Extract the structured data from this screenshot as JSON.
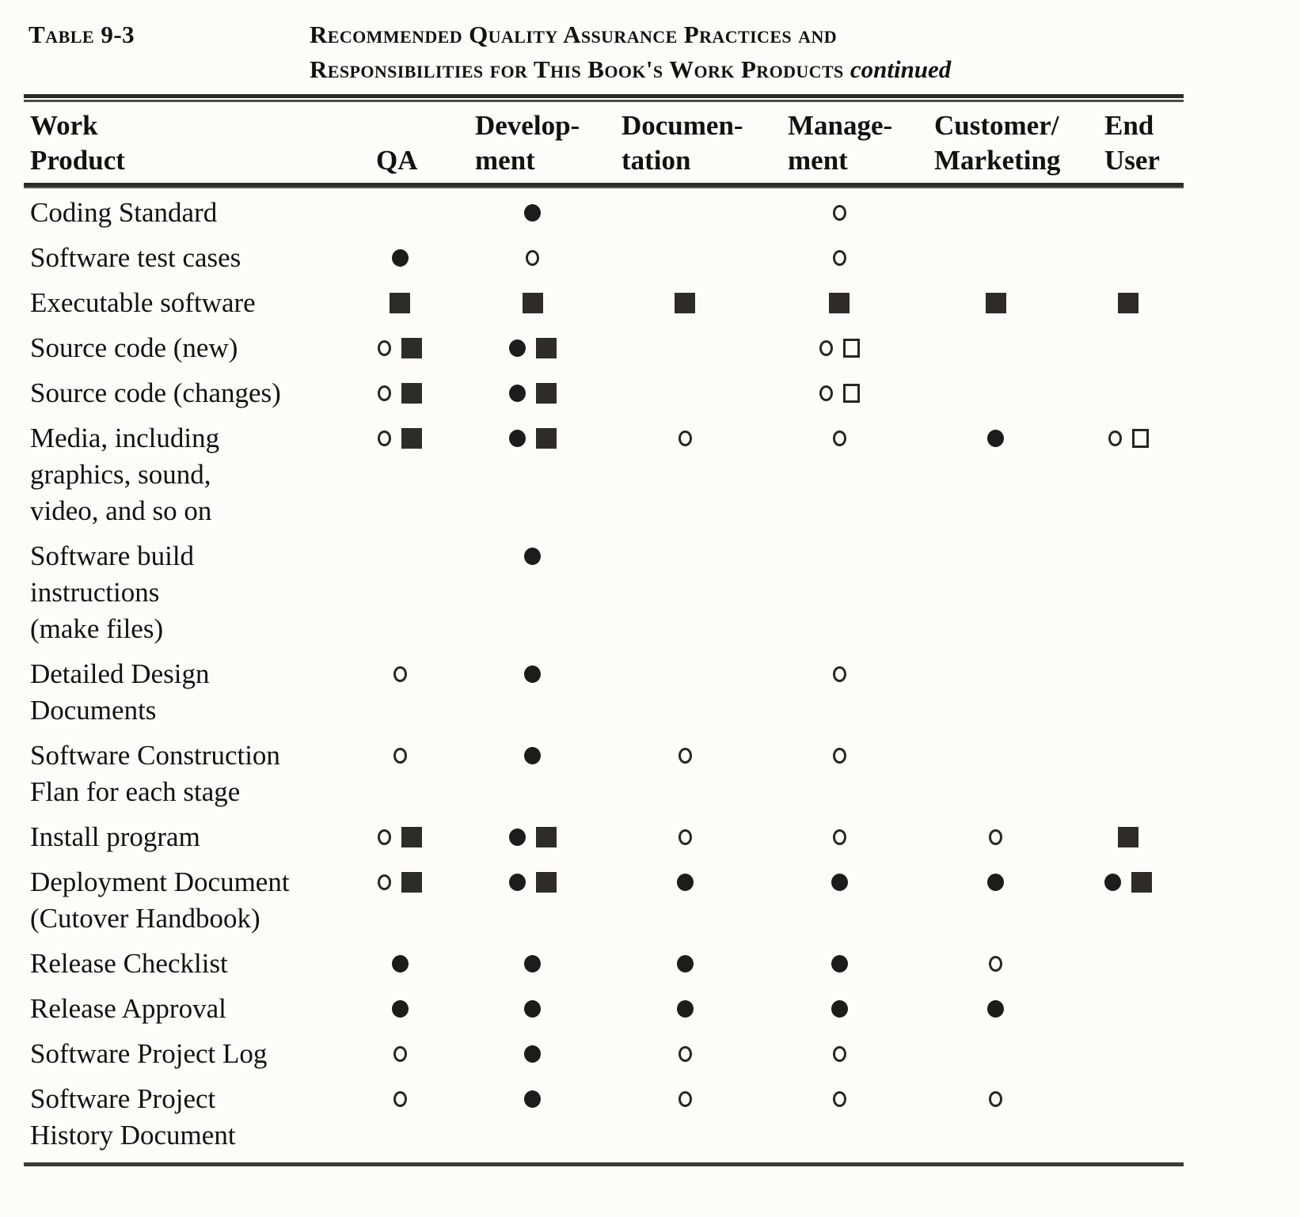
{
  "page": {
    "label": "Table 9-3",
    "title_line1": "Recommended Quality Assurance Practices and",
    "title_line2": "Responsibilities for This Book's Work Products",
    "continued": "continued"
  },
  "colors": {
    "ink": "#1c1c1c",
    "paper": "#fcfcfa"
  },
  "header": {
    "work_product": "Work\nProduct",
    "qa": "QA",
    "development": "Develop-\nment",
    "documentation": "Documen-\ntation",
    "management": "Manage-\nment",
    "customer_marketing": "Customer/\nMarketing",
    "end_user": "End\nUser"
  },
  "symbol_names": [
    "filled-circle",
    "open-circle",
    "filled-square",
    "open-square"
  ],
  "rows": [
    {
      "label": "Coding Standard",
      "cells": [
        [],
        [
          "filled-circle"
        ],
        [],
        [
          "open-circle"
        ],
        [],
        []
      ]
    },
    {
      "label": "Software test cases",
      "cells": [
        [
          "filled-circle"
        ],
        [
          "open-circle"
        ],
        [],
        [
          "open-circle"
        ],
        [],
        []
      ]
    },
    {
      "label": "Executable software",
      "cells": [
        [
          "filled-square"
        ],
        [
          "filled-square"
        ],
        [
          "filled-square"
        ],
        [
          "filled-square"
        ],
        [
          "filled-square"
        ],
        [
          "filled-square"
        ]
      ]
    },
    {
      "label": "Source code (new)",
      "cells": [
        [
          "open-circle",
          "filled-square"
        ],
        [
          "filled-circle",
          "filled-square"
        ],
        [],
        [
          "open-circle",
          "open-square"
        ],
        [],
        []
      ]
    },
    {
      "label": "Source code (changes)",
      "cells": [
        [
          "open-circle",
          "filled-square"
        ],
        [
          "filled-circle",
          "filled-square"
        ],
        [],
        [
          "open-circle",
          "open-square"
        ],
        [],
        []
      ]
    },
    {
      "label": "Media, including\ngraphics, sound,\nvideo, and so on",
      "cells": [
        [
          "open-circle",
          "filled-square"
        ],
        [
          "filled-circle",
          "filled-square"
        ],
        [
          "open-circle"
        ],
        [
          "open-circle"
        ],
        [
          "filled-circle"
        ],
        [
          "open-circle",
          "open-square"
        ]
      ]
    },
    {
      "label": "Software build\ninstructions\n(make files)",
      "cells": [
        [],
        [
          "filled-circle"
        ],
        [],
        [],
        [],
        []
      ]
    },
    {
      "label": "Detailed Design\nDocuments",
      "cells": [
        [
          "open-circle"
        ],
        [
          "filled-circle"
        ],
        [],
        [
          "open-circle"
        ],
        [],
        []
      ]
    },
    {
      "label": "Software Construction\nFlan for each stage",
      "cells": [
        [
          "open-circle"
        ],
        [
          "filled-circle"
        ],
        [
          "open-circle"
        ],
        [
          "open-circle"
        ],
        [],
        []
      ]
    },
    {
      "label": "Install program",
      "cells": [
        [
          "open-circle",
          "filled-square"
        ],
        [
          "filled-circle",
          "filled-square"
        ],
        [
          "open-circle"
        ],
        [
          "open-circle"
        ],
        [
          "open-circle"
        ],
        [
          "filled-square"
        ]
      ]
    },
    {
      "label": "Deployment Document\n(Cutover Handbook)",
      "cells": [
        [
          "open-circle",
          "filled-square"
        ],
        [
          "filled-circle",
          "filled-square"
        ],
        [
          "filled-circle"
        ],
        [
          "filled-circle"
        ],
        [
          "filled-circle"
        ],
        [
          "filled-circle",
          "filled-square"
        ]
      ]
    },
    {
      "label": "Release Checklist",
      "cells": [
        [
          "filled-circle"
        ],
        [
          "filled-circle"
        ],
        [
          "filled-circle"
        ],
        [
          "filled-circle"
        ],
        [
          "open-circle"
        ],
        []
      ]
    },
    {
      "label": "Release Approval",
      "cells": [
        [
          "filled-circle"
        ],
        [
          "filled-circle"
        ],
        [
          "filled-circle"
        ],
        [
          "filled-circle"
        ],
        [
          "filled-circle"
        ],
        []
      ]
    },
    {
      "label": "Software Project Log",
      "cells": [
        [
          "open-circle"
        ],
        [
          "filled-circle"
        ],
        [
          "open-circle"
        ],
        [
          "open-circle"
        ],
        [],
        []
      ]
    },
    {
      "label": "Software Project\nHistory Document",
      "cells": [
        [
          "open-circle"
        ],
        [
          "filled-circle"
        ],
        [
          "open-circle"
        ],
        [
          "open-circle"
        ],
        [
          "open-circle"
        ],
        []
      ]
    }
  ]
}
